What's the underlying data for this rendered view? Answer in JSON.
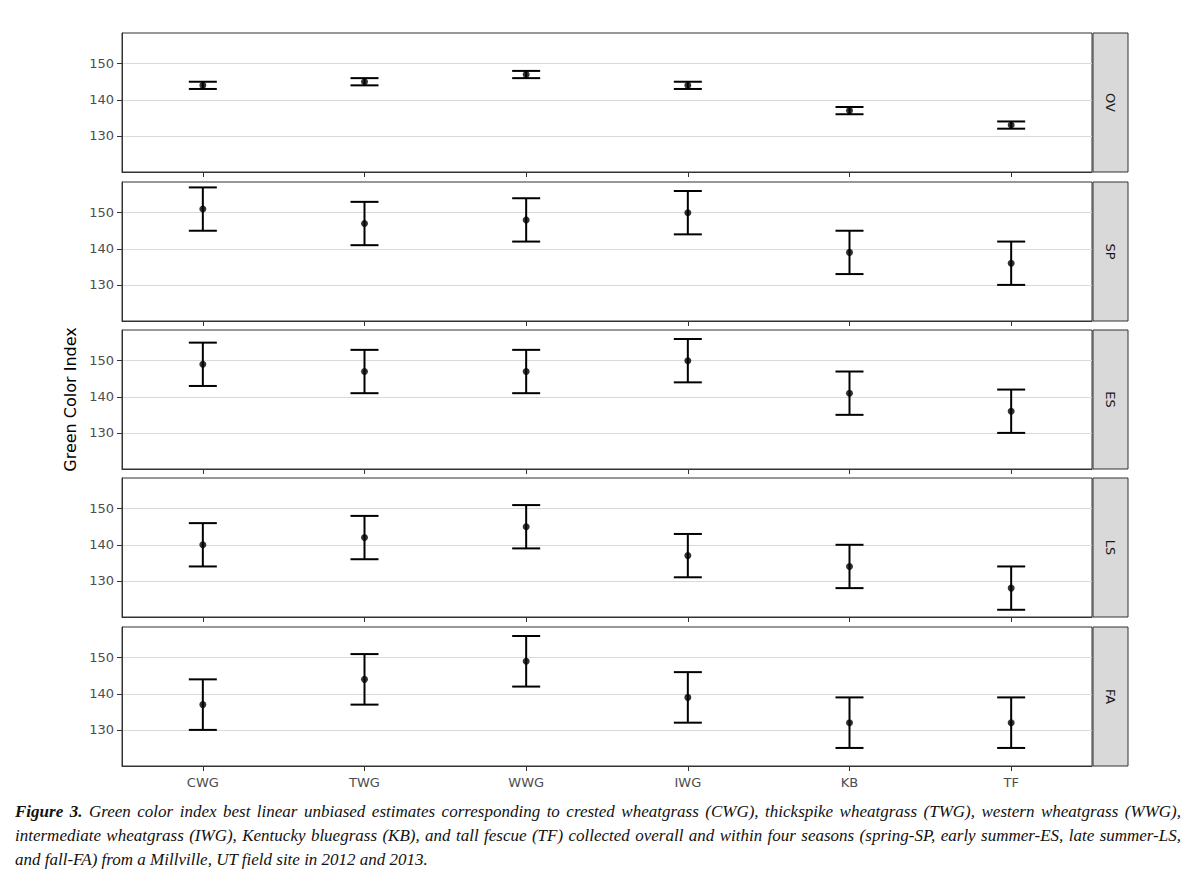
{
  "chart_data": [
    {
      "type": "scatter",
      "title": "OV",
      "categories": [
        "CWG",
        "TWG",
        "WWG",
        "IWG",
        "KB",
        "TF"
      ],
      "values": [
        144,
        145,
        147,
        144,
        137,
        133
      ],
      "lower": [
        143,
        144,
        146,
        143,
        136,
        132
      ],
      "upper": [
        145,
        146,
        148,
        145,
        138,
        134
      ],
      "ylim": [
        120,
        158.5
      ],
      "yticks": [
        130,
        140,
        150
      ],
      "grid": true,
      "color": "#000000",
      "tick_labels": "y"
    },
    {
      "type": "scatter",
      "title": "SP",
      "categories": [
        "CWG",
        "TWG",
        "WWG",
        "IWG",
        "KB",
        "TF"
      ],
      "values": [
        151,
        147,
        148,
        150,
        139,
        136
      ],
      "lower": [
        145,
        141,
        142,
        144,
        133,
        130
      ],
      "upper": [
        157,
        153,
        154,
        156,
        145,
        142
      ],
      "ylim": [
        120,
        158.5
      ],
      "yticks": [
        130,
        140,
        150
      ],
      "grid": true,
      "color": "#000000",
      "tick_labels": "y"
    },
    {
      "type": "scatter",
      "title": "ES",
      "categories": [
        "CWG",
        "TWG",
        "WWG",
        "IWG",
        "KB",
        "TF"
      ],
      "values": [
        149,
        147,
        147,
        150,
        141,
        136
      ],
      "lower": [
        143,
        141,
        141,
        144,
        135,
        130
      ],
      "upper": [
        155,
        153,
        153,
        156,
        147,
        142
      ],
      "ylim": [
        120,
        158.5
      ],
      "yticks": [
        130,
        140,
        150
      ],
      "grid": true,
      "color": "#000000",
      "tick_labels": "y"
    },
    {
      "type": "scatter",
      "title": "LS",
      "categories": [
        "CWG",
        "TWG",
        "WWG",
        "IWG",
        "KB",
        "TF"
      ],
      "values": [
        140,
        142,
        145,
        137,
        134,
        128
      ],
      "lower": [
        134,
        136,
        139,
        131,
        128,
        122
      ],
      "upper": [
        146,
        148,
        151,
        143,
        140,
        134
      ],
      "ylim": [
        120,
        158.5
      ],
      "yticks": [
        130,
        140,
        150
      ],
      "grid": true,
      "color": "#000000",
      "tick_labels": "y"
    },
    {
      "type": "scatter",
      "title": "FA",
      "categories": [
        "CWG",
        "TWG",
        "WWG",
        "IWG",
        "KB",
        "TF"
      ],
      "values": [
        137,
        144,
        149,
        139,
        132,
        132
      ],
      "lower": [
        130,
        137,
        142,
        132,
        125,
        125
      ],
      "upper": [
        144,
        151,
        156,
        146,
        139,
        139
      ],
      "ylim": [
        120,
        158.5
      ],
      "yticks": [
        130,
        140,
        150
      ],
      "grid": true,
      "color": "#000000"
    }
  ],
  "y_label": "Green Color Index",
  "caption": {
    "label": "Figure 3.",
    "text": "Green color index best linear unbiased estimates corresponding to crested wheatgrass (CWG), thickspike wheatgrass (TWG), western wheatgrass (WWG), intermediate wheatgrass (IWG), Kentucky bluegrass (KB), and tall fescue (TF) collected overall and within four seasons (spring-SP, early summer-ES, late summer-LS, and fall-FA) from a Millville, UT field site in 2012 and 2013."
  }
}
